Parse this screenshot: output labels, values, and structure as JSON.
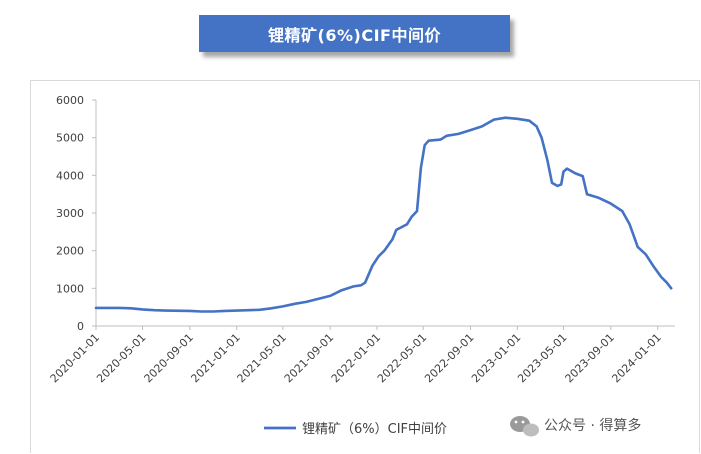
{
  "title": "锂精矿(6%)CIF中间价",
  "watermark": "公众号 · 得算多",
  "colors": {
    "line": "#4472c4",
    "title_bg": "#4472c4"
  },
  "chart_data": {
    "type": "line",
    "title": "锂精矿(6%)CIF中间价",
    "xlabel": "",
    "ylabel": "",
    "ylim": [
      0,
      6000
    ],
    "yticks": [
      0,
      1000,
      2000,
      3000,
      4000,
      5000,
      6000
    ],
    "xlim": [
      "2020-01-01",
      "2024-02-15"
    ],
    "xtick_labels": [
      "2020-01-01",
      "2020-05-01",
      "2020-09-01",
      "2021-01-01",
      "2021-05-01",
      "2021-09-01",
      "2022-01-01",
      "2022-05-01",
      "2022-09-01",
      "2023-01-01",
      "2023-05-01",
      "2023-09-01",
      "2024-01-01"
    ],
    "grid": false,
    "legend_position": "bottom",
    "series": [
      {
        "name": "锂精矿（6%）CIF中间价",
        "points": [
          [
            "2020-01-01",
            480
          ],
          [
            "2020-03-01",
            480
          ],
          [
            "2020-04-01",
            470
          ],
          [
            "2020-05-01",
            440
          ],
          [
            "2020-06-01",
            420
          ],
          [
            "2020-07-01",
            410
          ],
          [
            "2020-09-01",
            400
          ],
          [
            "2020-10-01",
            385
          ],
          [
            "2020-11-01",
            385
          ],
          [
            "2020-12-01",
            400
          ],
          [
            "2021-01-01",
            410
          ],
          [
            "2021-02-01",
            420
          ],
          [
            "2021-03-01",
            430
          ],
          [
            "2021-04-01",
            470
          ],
          [
            "2021-05-01",
            520
          ],
          [
            "2021-06-01",
            590
          ],
          [
            "2021-07-01",
            640
          ],
          [
            "2021-08-01",
            720
          ],
          [
            "2021-09-01",
            800
          ],
          [
            "2021-10-01",
            950
          ],
          [
            "2021-11-01",
            1050
          ],
          [
            "2021-11-20",
            1080
          ],
          [
            "2021-12-01",
            1150
          ],
          [
            "2021-12-20",
            1600
          ],
          [
            "2022-01-05",
            1850
          ],
          [
            "2022-01-20",
            2000
          ],
          [
            "2022-02-10",
            2300
          ],
          [
            "2022-02-20",
            2550
          ],
          [
            "2022-03-01",
            2600
          ],
          [
            "2022-03-20",
            2700
          ],
          [
            "2022-04-01",
            2900
          ],
          [
            "2022-04-15",
            3050
          ],
          [
            "2022-04-25",
            4200
          ],
          [
            "2022-05-05",
            4800
          ],
          [
            "2022-05-15",
            4920
          ],
          [
            "2022-06-15",
            4950
          ],
          [
            "2022-07-01",
            5050
          ],
          [
            "2022-08-01",
            5100
          ],
          [
            "2022-09-01",
            5200
          ],
          [
            "2022-10-01",
            5300
          ],
          [
            "2022-11-01",
            5480
          ],
          [
            "2022-12-01",
            5530
          ],
          [
            "2023-01-01",
            5500
          ],
          [
            "2023-02-01",
            5450
          ],
          [
            "2023-02-20",
            5300
          ],
          [
            "2023-03-05",
            5000
          ],
          [
            "2023-03-20",
            4400
          ],
          [
            "2023-04-01",
            3800
          ],
          [
            "2023-04-15",
            3720
          ],
          [
            "2023-04-25",
            3760
          ],
          [
            "2023-05-01",
            4100
          ],
          [
            "2023-05-10",
            4180
          ],
          [
            "2023-06-01",
            4050
          ],
          [
            "2023-06-20",
            3980
          ],
          [
            "2023-07-01",
            3500
          ],
          [
            "2023-08-01",
            3400
          ],
          [
            "2023-09-01",
            3250
          ],
          [
            "2023-10-01",
            3050
          ],
          [
            "2023-10-20",
            2700
          ],
          [
            "2023-11-10",
            2100
          ],
          [
            "2023-12-01",
            1900
          ],
          [
            "2023-12-20",
            1600
          ],
          [
            "2024-01-10",
            1300
          ],
          [
            "2024-01-25",
            1150
          ],
          [
            "2024-02-05",
            1000
          ]
        ]
      }
    ]
  }
}
